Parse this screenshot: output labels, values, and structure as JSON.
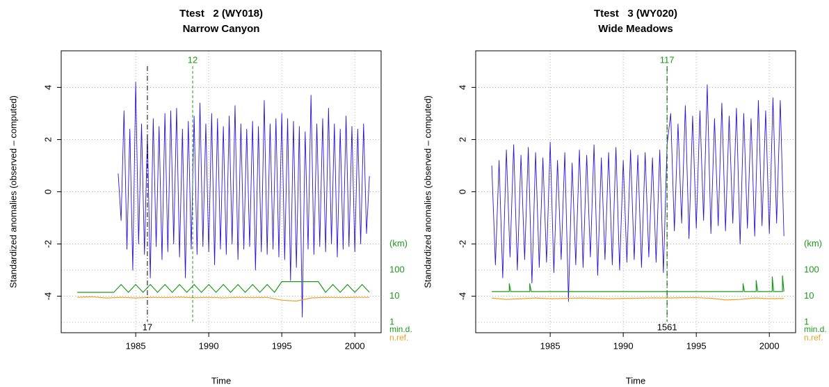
{
  "chart_data": [
    {
      "type": "line",
      "title": "Ttest   2 (WY018)",
      "subtitle": "Narrow Canyon",
      "xlabel": "Time",
      "ylabel": "Standardized anomalies (observed – computed)",
      "xlim": [
        1979.9,
        2001.8
      ],
      "xticks": [
        1985,
        1990,
        1995,
        2000
      ],
      "ylim": [
        -5.4,
        5.4
      ],
      "yticks": [
        -4,
        -2,
        0,
        2,
        4
      ],
      "y2lim": [
        0.398,
        25118864315
      ],
      "y2log": true,
      "y2ticks": [
        {
          "value": 1,
          "label": "1"
        },
        {
          "value": 10,
          "label": "10"
        },
        {
          "value": 100,
          "label": "100"
        }
      ],
      "y2label": "(km)",
      "grid": true,
      "series": [
        {
          "name": "anomalies",
          "color": "#2a10d8",
          "x": [
            1983.8,
            1984,
            1984.2,
            1984.4,
            1984.6,
            1984.8,
            1985,
            1985.2,
            1985.4,
            1985.6,
            1985.8,
            1986,
            1986.2,
            1986.4,
            1986.6,
            1986.8,
            1987,
            1987.2,
            1987.4,
            1987.6,
            1987.8,
            1988,
            1988.2,
            1988.4,
            1988.6,
            1988.8,
            1989,
            1989.2,
            1989.4,
            1989.6,
            1989.8,
            1990,
            1990.2,
            1990.4,
            1990.6,
            1990.8,
            1991,
            1991.2,
            1991.4,
            1991.6,
            1991.8,
            1992,
            1992.2,
            1992.4,
            1992.6,
            1992.8,
            1993,
            1993.2,
            1993.4,
            1993.6,
            1993.8,
            1994,
            1994.2,
            1994.4,
            1994.6,
            1994.8,
            1995,
            1995.2,
            1995.4,
            1995.6,
            1995.8,
            1996,
            1996.2,
            1996.4,
            1996.6,
            1996.8,
            1997,
            1997.2,
            1997.4,
            1997.6,
            1997.8,
            1998,
            1998.2,
            1998.4,
            1998.6,
            1998.8,
            1999,
            1999.2,
            1999.4,
            1999.6,
            1999.8,
            2000,
            2000.2,
            2000.4,
            2000.6,
            2000.8,
            2001
          ],
          "values": [
            0.7,
            -1.1,
            3.1,
            -2.2,
            2.4,
            -3.0,
            4.2,
            -2.0,
            2.6,
            -2.4,
            2.2,
            -3.3,
            2.8,
            -2.1,
            2.5,
            -2.6,
            3.0,
            -2.3,
            3.1,
            -2.0,
            3.2,
            -2.5,
            2.4,
            -3.3,
            2.7,
            -2.2,
            2.9,
            -2.4,
            3.4,
            -2.1,
            2.6,
            -2.3,
            3.0,
            -2.8,
            2.8,
            -2.2,
            2.5,
            -2.4,
            2.9,
            -2.0,
            3.3,
            -2.6,
            2.6,
            -2.2,
            2.4,
            -2.1,
            2.7,
            -3.0,
            2.5,
            -2.3,
            3.5,
            -2.4,
            2.6,
            -2.2,
            2.8,
            -2.5,
            3.0,
            -2.6,
            2.8,
            -3.4,
            2.7,
            -2.9,
            2.5,
            -4.8,
            2.3,
            -2.2,
            3.7,
            -2.4,
            2.6,
            -2.1,
            2.8,
            -2.3,
            3.2,
            -2.0,
            2.6,
            -2.5,
            2.4,
            -2.2,
            2.9,
            -2.1,
            2.5,
            -2.3,
            2.4,
            -2.0,
            2.6,
            -1.6,
            0.6
          ]
        },
        {
          "name": "min.d.",
          "color": "#1a9a1a",
          "axis": "y2",
          "x": [
            1981,
            1983.5,
            1984,
            1984.5,
            1985,
            1985.5,
            1986,
            1986.5,
            1987,
            1987.5,
            1988,
            1988.5,
            1989,
            1989.5,
            1990,
            1990.5,
            1991,
            1991.5,
            1992,
            1992.5,
            1993,
            1993.5,
            1994,
            1994.5,
            1995,
            1995.5,
            1996,
            1996.5,
            1997,
            1997.5,
            1998,
            1998.5,
            1999,
            1999.5,
            2000,
            2000.5,
            2001
          ],
          "values": [
            14,
            14,
            28,
            14,
            28,
            14,
            28,
            14,
            28,
            14,
            28,
            14,
            28,
            14,
            28,
            14,
            28,
            14,
            28,
            14,
            28,
            14,
            28,
            14,
            36,
            36,
            36,
            36,
            36,
            36,
            14,
            28,
            14,
            28,
            14,
            28,
            14
          ]
        },
        {
          "name": "n.ref.",
          "color": "#f0a020",
          "axis": "y2",
          "x": [
            1981,
            1982,
            1983,
            1984,
            1985,
            1986,
            1987,
            1988,
            1989,
            1990,
            1991,
            1992,
            1993,
            1994,
            1995,
            1996,
            1997,
            1998,
            1999,
            2000,
            2001
          ],
          "values": [
            9,
            9.5,
            8.5,
            9,
            8.5,
            9,
            8.8,
            9.2,
            8.7,
            9,
            8.6,
            9,
            8.8,
            9,
            7,
            6.5,
            8.5,
            9,
            8.8,
            9,
            9
          ]
        }
      ],
      "vlines": [
        {
          "x": 1985.8,
          "label": "17",
          "color": "#000000",
          "style": "dashdot",
          "label_pos": "bottom"
        },
        {
          "x": 1988.9,
          "label": "12",
          "color": "#1a9a1a",
          "style": "dashed",
          "label_pos": "top"
        }
      ]
    },
    {
      "type": "line",
      "title": "Ttest   3 (WY020)",
      "subtitle": "Wide Meadows",
      "xlabel": "Time",
      "ylabel": "Standardized anomalies (observed – computed)",
      "xlim": [
        1979.9,
        2001.8
      ],
      "xticks": [
        1985,
        1990,
        1995,
        2000
      ],
      "ylim": [
        -5.4,
        5.4
      ],
      "yticks": [
        -4,
        -2,
        0,
        2,
        4
      ],
      "y2lim": [
        0.398,
        25118864315
      ],
      "y2log": true,
      "y2ticks": [
        {
          "value": 1,
          "label": "1"
        },
        {
          "value": 10,
          "label": "10"
        },
        {
          "value": 100,
          "label": "100"
        }
      ],
      "y2label": "(km)",
      "grid": true,
      "series": [
        {
          "name": "anomalies",
          "color": "#2a10d8",
          "x": [
            1981,
            1981.25,
            1981.5,
            1981.75,
            1982,
            1982.25,
            1982.5,
            1982.75,
            1983,
            1983.25,
            1983.5,
            1983.75,
            1984,
            1984.25,
            1984.5,
            1984.75,
            1985,
            1985.25,
            1985.5,
            1985.75,
            1986,
            1986.25,
            1986.5,
            1986.75,
            1987,
            1987.25,
            1987.5,
            1987.75,
            1988,
            1988.25,
            1988.5,
            1988.75,
            1989,
            1989.25,
            1989.5,
            1989.75,
            1990,
            1990.25,
            1990.5,
            1990.75,
            1991,
            1991.25,
            1991.5,
            1991.75,
            1992,
            1992.25,
            1992.5,
            1992.75,
            1993,
            1993.25,
            1993.5,
            1993.75,
            1994,
            1994.25,
            1994.5,
            1994.75,
            1995,
            1995.25,
            1995.5,
            1995.75,
            1996,
            1996.25,
            1996.5,
            1996.75,
            1997,
            1997.25,
            1997.5,
            1997.75,
            1998,
            1998.25,
            1998.5,
            1998.75,
            1999,
            1999.25,
            1999.5,
            1999.75,
            2000,
            2000.25,
            2000.5,
            2000.75,
            2001
          ],
          "values": [
            1.0,
            -2.8,
            1.2,
            -3.3,
            1.6,
            -2.5,
            1.8,
            -3.0,
            1.4,
            -2.6,
            1.7,
            -3.5,
            1.5,
            -2.9,
            1.3,
            -2.7,
            1.9,
            -3.1,
            1.2,
            -2.6,
            1.5,
            -4.2,
            1.1,
            -2.8,
            1.6,
            -2.9,
            1.4,
            -2.5,
            1.8,
            -3.2,
            1.3,
            -2.6,
            1.5,
            -2.8,
            1.7,
            -3.0,
            1.2,
            -2.7,
            1.6,
            -2.6,
            1.4,
            -2.9,
            1.5,
            -2.5,
            1.3,
            -2.7,
            1.6,
            -3.1,
            1.8,
            3.0,
            -1.5,
            2.6,
            -1.2,
            3.3,
            -1.8,
            2.9,
            -1.4,
            3.1,
            -1.1,
            4.1,
            -1.6,
            2.8,
            -1.3,
            3.4,
            -1.5,
            2.9,
            -1.2,
            3.2,
            -2.0,
            3.0,
            -1.4,
            2.8,
            -1.7,
            3.5,
            -1.3,
            3.1,
            -1.6,
            3.6,
            -1.2,
            3.5,
            -1.7
          ]
        },
        {
          "name": "min.d.",
          "color": "#1a9a1a",
          "axis": "y2",
          "x": [
            1981,
            1982.2,
            1982.2,
            1982.3,
            1983.6,
            1983.6,
            1983.7,
            1998.2,
            1998.2,
            1998.3,
            1999.1,
            1999.1,
            1999.2,
            2000.2,
            2000.2,
            2000.3,
            2000.9,
            2000.9,
            2001
          ],
          "values": [
            15,
            15,
            30,
            15,
            15,
            30,
            15,
            15,
            30,
            15,
            15,
            40,
            15,
            15,
            55,
            15,
            15,
            60,
            15
          ]
        },
        {
          "name": "n.ref.",
          "color": "#f0a020",
          "axis": "y2",
          "x": [
            1981,
            1982,
            1983,
            1984,
            1985,
            1986,
            1987,
            1988,
            1989,
            1990,
            1991,
            1992,
            1993,
            1994,
            1995,
            1996,
            1997,
            1998,
            1999,
            2000,
            2001
          ],
          "values": [
            8.5,
            7.5,
            8,
            8.5,
            8,
            8.2,
            8.5,
            8.3,
            8,
            8.2,
            8.4,
            8.6,
            8.5,
            8.7,
            8.8,
            8.3,
            7.2,
            7.5,
            8.5,
            8,
            8.2
          ]
        }
      ],
      "vlines": [
        {
          "x": 1993.0,
          "label": "1561",
          "color": "#000000",
          "style": "dashdot",
          "label_pos": "bottom"
        },
        {
          "x": 1993.0,
          "label": "117",
          "color": "#1a9a1a",
          "style": "dashed",
          "label_pos": "top"
        }
      ]
    }
  ]
}
